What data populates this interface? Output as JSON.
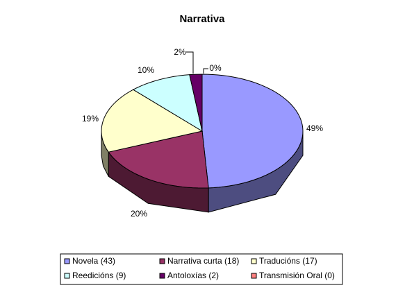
{
  "chart_data": {
    "type": "pie3d",
    "title": "Narrativa",
    "categories": [
      "Novela (43)",
      "Narrativa curta (18)",
      "Traducións (17)",
      "Reedicións (9)",
      "Antoloxías (2)",
      "Transmisión Oral (0)"
    ],
    "values": [
      49,
      20,
      19,
      10,
      2,
      0
    ],
    "value_labels": [
      "49%",
      "20%",
      "19%",
      "10%",
      "2%",
      "0%"
    ],
    "colors": [
      "#9999ff",
      "#993366",
      "#ffffcc",
      "#ccffff",
      "#660066",
      "#ff8080"
    ]
  }
}
